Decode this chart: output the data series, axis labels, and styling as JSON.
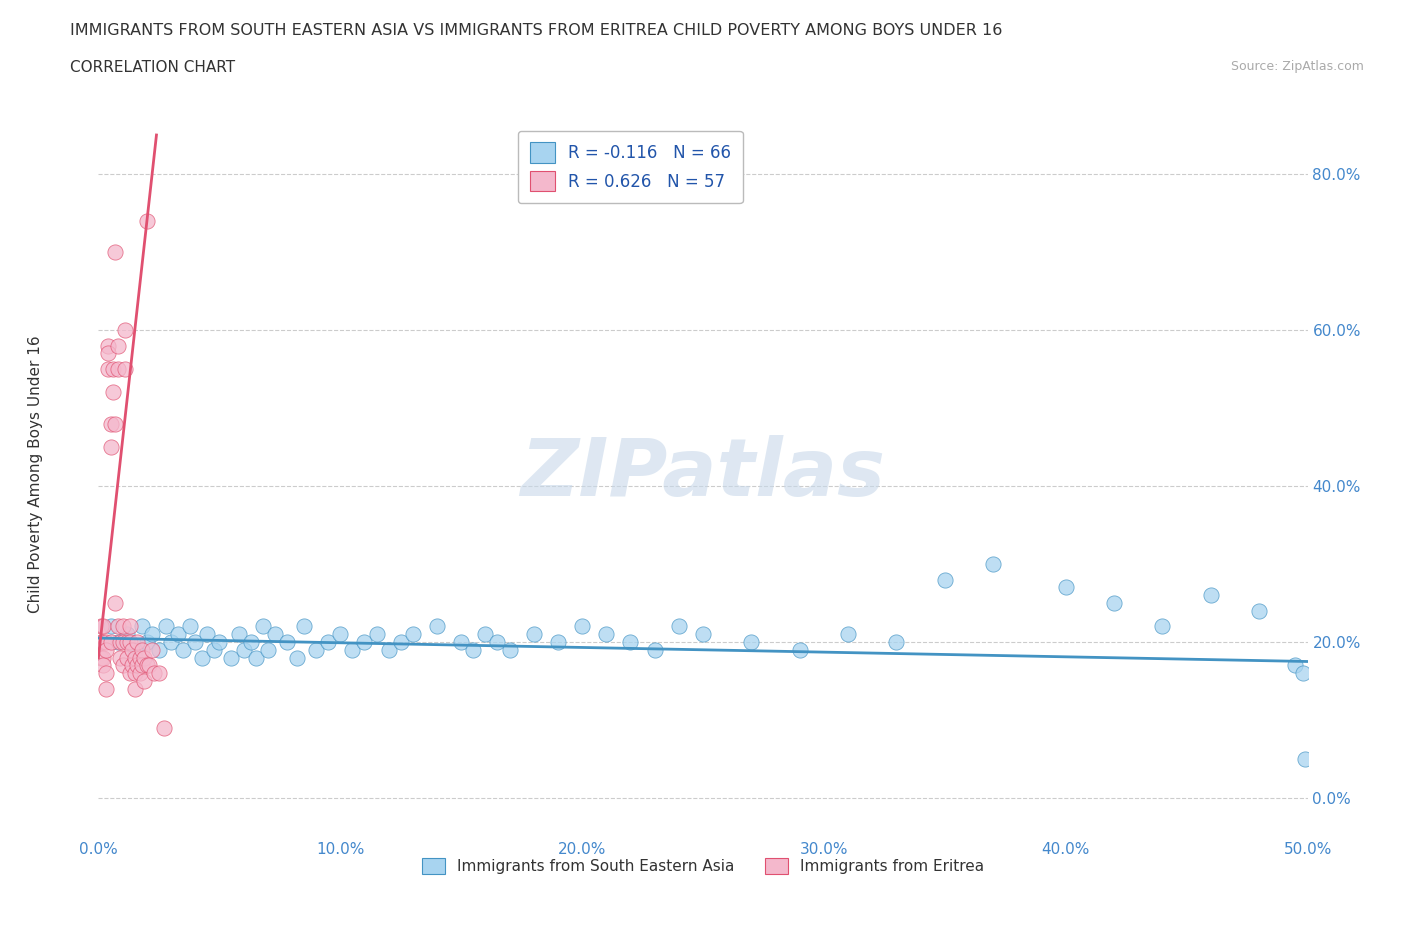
{
  "title": "IMMIGRANTS FROM SOUTH EASTERN ASIA VS IMMIGRANTS FROM ERITREA CHILD POVERTY AMONG BOYS UNDER 16",
  "subtitle": "CORRELATION CHART",
  "source": "Source: ZipAtlas.com",
  "ylabel": "Child Poverty Among Boys Under 16",
  "xlim": [
    0.0,
    0.5
  ],
  "ylim": [
    -0.05,
    0.88
  ],
  "xticks": [
    0.0,
    0.1,
    0.2,
    0.3,
    0.4,
    0.5
  ],
  "xticklabels": [
    "0.0%",
    "10.0%",
    "20.0%",
    "30.0%",
    "40.0%",
    "50.0%"
  ],
  "yticks": [
    0.0,
    0.2,
    0.4,
    0.6,
    0.8
  ],
  "yticklabels": [
    "0.0%",
    "20.0%",
    "40.0%",
    "60.0%",
    "80.0%"
  ],
  "legend_r1": "R = -0.116   N = 66",
  "legend_r2": "R = 0.626   N = 57",
  "color_blue": "#a8d4f0",
  "color_pink": "#f4b8cc",
  "line_color_blue": "#4393c3",
  "line_color_pink": "#e05070",
  "watermark": "ZIPatlas",
  "watermark_color": "#c8d8ea",
  "grid_color": "#cccccc",
  "blue_scatter_x": [
    0.005,
    0.008,
    0.012,
    0.015,
    0.018,
    0.02,
    0.022,
    0.025,
    0.028,
    0.03,
    0.033,
    0.035,
    0.038,
    0.04,
    0.043,
    0.045,
    0.048,
    0.05,
    0.055,
    0.058,
    0.06,
    0.063,
    0.065,
    0.068,
    0.07,
    0.073,
    0.078,
    0.082,
    0.085,
    0.09,
    0.095,
    0.1,
    0.105,
    0.11,
    0.115,
    0.12,
    0.125,
    0.13,
    0.14,
    0.15,
    0.155,
    0.16,
    0.165,
    0.17,
    0.18,
    0.19,
    0.2,
    0.21,
    0.22,
    0.23,
    0.24,
    0.25,
    0.27,
    0.29,
    0.31,
    0.33,
    0.35,
    0.37,
    0.4,
    0.42,
    0.44,
    0.46,
    0.48,
    0.495,
    0.498,
    0.499
  ],
  "blue_scatter_y": [
    0.22,
    0.2,
    0.21,
    0.19,
    0.22,
    0.2,
    0.21,
    0.19,
    0.22,
    0.2,
    0.21,
    0.19,
    0.22,
    0.2,
    0.18,
    0.21,
    0.19,
    0.2,
    0.18,
    0.21,
    0.19,
    0.2,
    0.18,
    0.22,
    0.19,
    0.21,
    0.2,
    0.18,
    0.22,
    0.19,
    0.2,
    0.21,
    0.19,
    0.2,
    0.21,
    0.19,
    0.2,
    0.21,
    0.22,
    0.2,
    0.19,
    0.21,
    0.2,
    0.19,
    0.21,
    0.2,
    0.22,
    0.21,
    0.2,
    0.19,
    0.22,
    0.21,
    0.2,
    0.19,
    0.21,
    0.2,
    0.28,
    0.3,
    0.27,
    0.25,
    0.22,
    0.26,
    0.24,
    0.17,
    0.16,
    0.05
  ],
  "pink_scatter_x": [
    0.001,
    0.001,
    0.001,
    0.002,
    0.002,
    0.002,
    0.002,
    0.003,
    0.003,
    0.003,
    0.003,
    0.004,
    0.004,
    0.004,
    0.005,
    0.005,
    0.005,
    0.006,
    0.006,
    0.007,
    0.007,
    0.007,
    0.008,
    0.008,
    0.008,
    0.009,
    0.009,
    0.01,
    0.01,
    0.01,
    0.011,
    0.011,
    0.012,
    0.012,
    0.013,
    0.013,
    0.013,
    0.014,
    0.014,
    0.015,
    0.015,
    0.015,
    0.016,
    0.016,
    0.017,
    0.017,
    0.018,
    0.018,
    0.019,
    0.019,
    0.02,
    0.02,
    0.021,
    0.022,
    0.023,
    0.025,
    0.027
  ],
  "pink_scatter_y": [
    0.22,
    0.2,
    0.18,
    0.22,
    0.2,
    0.18,
    0.17,
    0.2,
    0.19,
    0.16,
    0.14,
    0.55,
    0.58,
    0.57,
    0.48,
    0.45,
    0.2,
    0.55,
    0.52,
    0.48,
    0.7,
    0.25,
    0.58,
    0.22,
    0.55,
    0.2,
    0.18,
    0.2,
    0.22,
    0.17,
    0.6,
    0.55,
    0.2,
    0.18,
    0.22,
    0.2,
    0.16,
    0.17,
    0.19,
    0.18,
    0.16,
    0.14,
    0.2,
    0.17,
    0.18,
    0.16,
    0.19,
    0.17,
    0.15,
    0.18,
    0.74,
    0.17,
    0.17,
    0.19,
    0.16,
    0.16,
    0.09
  ],
  "pink_trendline_x": [
    0.0,
    0.024
  ],
  "pink_trendline_y": [
    0.18,
    0.85
  ],
  "blue_trendline_x": [
    0.0,
    0.5
  ],
  "blue_trendline_y": [
    0.205,
    0.175
  ]
}
